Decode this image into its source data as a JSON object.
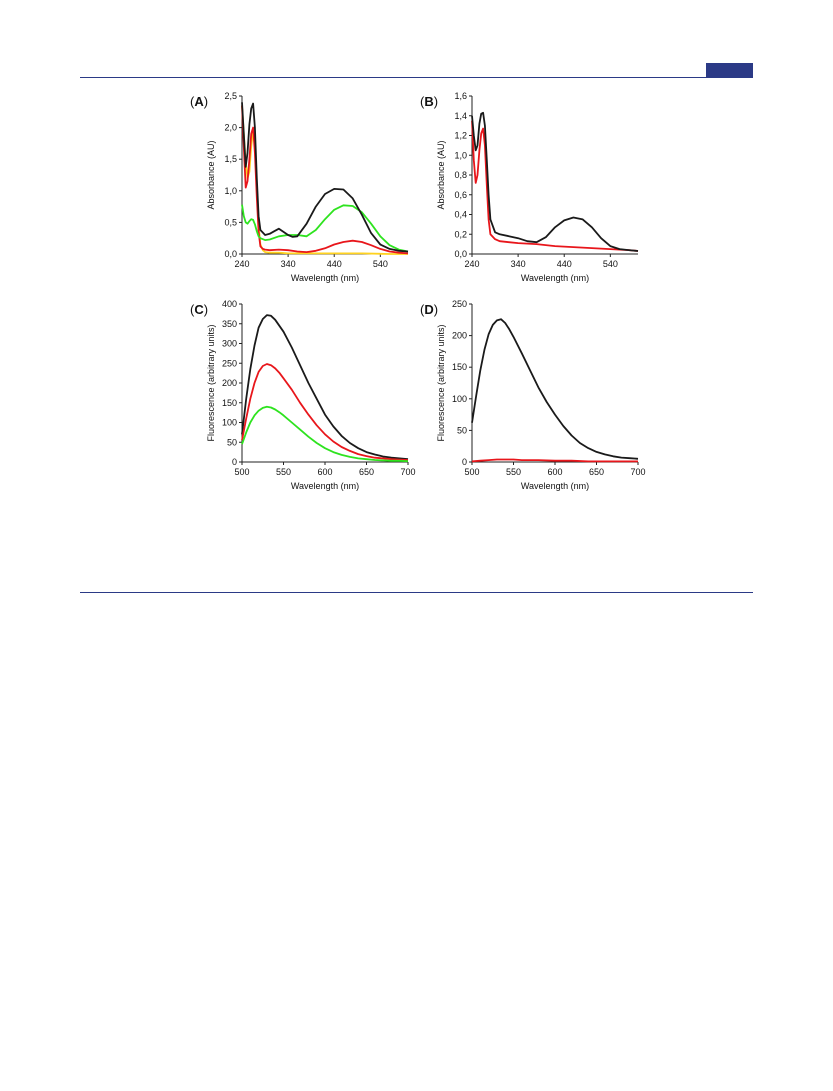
{
  "header": {
    "accent_color": "#2b3a86"
  },
  "chart_data": [
    {
      "id": "A",
      "panel_label": "A",
      "type": "line",
      "xlabel": "Wavelength  (nm)",
      "ylabel": "Absorbance (AU)",
      "xlim": [
        240,
        600
      ],
      "ylim": [
        0,
        2.5
      ],
      "xticks": [
        240,
        340,
        440,
        540
      ],
      "xtick_labels": [
        "240",
        "340",
        "440",
        "540"
      ],
      "yticks": [
        0,
        0.5,
        1.0,
        1.5,
        2.0,
        2.5
      ],
      "ytick_labels": [
        "0,0",
        "0,5",
        "1,0",
        "1,5",
        "2,0",
        "2,5"
      ],
      "grid": false,
      "series": [
        {
          "color": "#ffd21f",
          "x": [
            240,
            244,
            248,
            252,
            256,
            260,
            264,
            268,
            272,
            276,
            280,
            285,
            290,
            300,
            320,
            340,
            380,
            440,
            500,
            560,
            600
          ],
          "y": [
            2.35,
            1.9,
            1.45,
            1.2,
            1.3,
            1.7,
            1.95,
            1.7,
            1.0,
            0.45,
            0.15,
            0.06,
            0.03,
            0.02,
            0.02,
            0.01,
            0.01,
            0.01,
            0.01,
            0.0,
            0.0
          ]
        },
        {
          "color": "#e8161b",
          "x": [
            240,
            244,
            248,
            252,
            256,
            260,
            264,
            268,
            272,
            276,
            280,
            285,
            290,
            300,
            320,
            340,
            360,
            380,
            400,
            420,
            440,
            460,
            480,
            500,
            520,
            540,
            560,
            580,
            600
          ],
          "y": [
            2.35,
            1.7,
            1.05,
            1.15,
            1.5,
            1.9,
            2.0,
            1.6,
            0.9,
            0.35,
            0.12,
            0.08,
            0.07,
            0.06,
            0.07,
            0.06,
            0.04,
            0.03,
            0.05,
            0.09,
            0.15,
            0.19,
            0.21,
            0.19,
            0.14,
            0.08,
            0.04,
            0.02,
            0.01
          ]
        },
        {
          "color": "#2ee31f",
          "x": [
            240,
            244,
            248,
            252,
            256,
            260,
            264,
            268,
            272,
            276,
            280,
            290,
            300,
            320,
            340,
            360,
            380,
            400,
            420,
            440,
            460,
            480,
            500,
            520,
            540,
            560,
            580,
            600
          ],
          "y": [
            0.78,
            0.6,
            0.5,
            0.48,
            0.52,
            0.55,
            0.54,
            0.47,
            0.36,
            0.28,
            0.25,
            0.22,
            0.23,
            0.28,
            0.3,
            0.3,
            0.28,
            0.38,
            0.55,
            0.7,
            0.77,
            0.76,
            0.66,
            0.48,
            0.28,
            0.14,
            0.07,
            0.04
          ]
        },
        {
          "color": "#1a1a1a",
          "x": [
            240,
            244,
            248,
            252,
            256,
            260,
            264,
            268,
            272,
            276,
            280,
            290,
            300,
            310,
            320,
            330,
            340,
            350,
            360,
            380,
            400,
            420,
            440,
            460,
            480,
            500,
            520,
            540,
            560,
            580,
            600
          ],
          "y": [
            2.4,
            1.9,
            1.38,
            1.6,
            2.05,
            2.3,
            2.38,
            2.0,
            1.2,
            0.6,
            0.38,
            0.3,
            0.32,
            0.36,
            0.4,
            0.35,
            0.3,
            0.27,
            0.28,
            0.48,
            0.75,
            0.95,
            1.03,
            1.02,
            0.88,
            0.62,
            0.33,
            0.15,
            0.08,
            0.05,
            0.04
          ]
        }
      ]
    },
    {
      "id": "B",
      "panel_label": "B",
      "type": "line",
      "xlabel": "Wavelength  (nm)",
      "ylabel": "Absorbance (AU)",
      "xlim": [
        240,
        600
      ],
      "ylim": [
        0,
        1.6
      ],
      "xticks": [
        240,
        340,
        440,
        540
      ],
      "xtick_labels": [
        "240",
        "340",
        "440",
        "540"
      ],
      "yticks": [
        0,
        0.2,
        0.4,
        0.6,
        0.8,
        1.0,
        1.2,
        1.4,
        1.6
      ],
      "ytick_labels": [
        "0,0",
        "0,2",
        "0,4",
        "0,6",
        "0,8",
        "1,0",
        "1,2",
        "1,4",
        "1,6"
      ],
      "grid": false,
      "series": [
        {
          "color": "#e8161b",
          "x": [
            240,
            244,
            248,
            252,
            256,
            260,
            264,
            268,
            272,
            276,
            280,
            290,
            300,
            320,
            340,
            380,
            420,
            460,
            500,
            540,
            580,
            600
          ],
          "y": [
            1.35,
            0.95,
            0.72,
            0.8,
            1.05,
            1.22,
            1.27,
            1.1,
            0.7,
            0.35,
            0.2,
            0.15,
            0.13,
            0.12,
            0.11,
            0.1,
            0.08,
            0.07,
            0.06,
            0.05,
            0.04,
            0.03
          ]
        },
        {
          "color": "#1a1a1a",
          "x": [
            240,
            244,
            248,
            252,
            256,
            260,
            264,
            268,
            272,
            276,
            280,
            290,
            300,
            320,
            340,
            360,
            380,
            400,
            420,
            440,
            460,
            480,
            500,
            520,
            540,
            560,
            580,
            600
          ],
          "y": [
            1.4,
            1.2,
            1.05,
            1.1,
            1.32,
            1.42,
            1.43,
            1.3,
            0.95,
            0.6,
            0.35,
            0.22,
            0.2,
            0.18,
            0.16,
            0.13,
            0.12,
            0.17,
            0.27,
            0.34,
            0.37,
            0.35,
            0.27,
            0.16,
            0.08,
            0.05,
            0.04,
            0.03
          ]
        }
      ]
    },
    {
      "id": "C",
      "panel_label": "C",
      "type": "line",
      "xlabel": "Wavelength  (nm)",
      "ylabel": "Fluorescence (arbitrary units)",
      "xlim": [
        500,
        700
      ],
      "ylim": [
        0,
        400
      ],
      "xticks": [
        500,
        550,
        600,
        650,
        700
      ],
      "xtick_labels": [
        "500",
        "550",
        "600",
        "650",
        "700"
      ],
      "yticks": [
        0,
        50,
        100,
        150,
        200,
        250,
        300,
        350,
        400
      ],
      "ytick_labels": [
        "0",
        "50",
        "100",
        "150",
        "200",
        "250",
        "300",
        "350",
        "400"
      ],
      "grid": false,
      "series": [
        {
          "color": "#1a1a1a",
          "x": [
            500,
            505,
            510,
            515,
            520,
            525,
            530,
            535,
            540,
            545,
            550,
            560,
            570,
            580,
            590,
            600,
            610,
            620,
            630,
            640,
            650,
            660,
            670,
            680,
            690,
            700
          ],
          "y": [
            70,
            160,
            235,
            295,
            340,
            362,
            372,
            370,
            360,
            345,
            330,
            290,
            245,
            200,
            160,
            120,
            90,
            66,
            48,
            35,
            25,
            19,
            14,
            11,
            9,
            7
          ]
        },
        {
          "color": "#e8161b",
          "x": [
            500,
            505,
            510,
            515,
            520,
            525,
            530,
            535,
            540,
            545,
            550,
            560,
            570,
            580,
            590,
            600,
            610,
            620,
            630,
            640,
            650,
            660,
            670,
            680,
            690,
            700
          ],
          "y": [
            55,
            110,
            160,
            200,
            228,
            243,
            248,
            245,
            237,
            226,
            212,
            183,
            150,
            120,
            93,
            70,
            52,
            38,
            28,
            20,
            15,
            11,
            9,
            7,
            6,
            5
          ]
        },
        {
          "color": "#2ee31f",
          "x": [
            500,
            505,
            510,
            515,
            520,
            525,
            530,
            535,
            540,
            545,
            550,
            560,
            570,
            580,
            590,
            600,
            610,
            620,
            630,
            640,
            650,
            660,
            670,
            680,
            690,
            700
          ],
          "y": [
            45,
            75,
            100,
            118,
            130,
            137,
            140,
            138,
            133,
            126,
            118,
            100,
            82,
            64,
            48,
            35,
            25,
            18,
            13,
            9,
            7,
            5,
            4,
            3,
            3,
            2
          ]
        }
      ]
    },
    {
      "id": "D",
      "panel_label": "D",
      "type": "line",
      "xlabel": "Wavelength  (nm)",
      "ylabel": "Fluorescence (arbitrary units)",
      "xlim": [
        500,
        700
      ],
      "ylim": [
        0,
        250
      ],
      "xticks": [
        500,
        550,
        600,
        650,
        700
      ],
      "xtick_labels": [
        "500",
        "550",
        "600",
        "650",
        "700"
      ],
      "yticks": [
        0,
        50,
        100,
        150,
        200,
        250
      ],
      "ytick_labels": [
        "0",
        "50",
        "100",
        "150",
        "200",
        "250"
      ],
      "grid": false,
      "series": [
        {
          "color": "#1a1a1a",
          "x": [
            500,
            505,
            510,
            515,
            520,
            525,
            530,
            535,
            540,
            545,
            550,
            560,
            570,
            580,
            590,
            600,
            610,
            620,
            630,
            640,
            650,
            660,
            670,
            680,
            690,
            700
          ],
          "y": [
            62,
            105,
            145,
            178,
            202,
            217,
            224,
            226,
            220,
            210,
            198,
            172,
            145,
            118,
            95,
            75,
            57,
            42,
            30,
            22,
            16,
            12,
            9,
            7,
            6,
            5
          ]
        },
        {
          "color": "#e8161b",
          "x": [
            500,
            510,
            520,
            530,
            540,
            550,
            560,
            580,
            600,
            620,
            640,
            660,
            680,
            700
          ],
          "y": [
            1,
            2,
            3,
            4,
            4,
            4,
            3,
            3,
            2,
            2,
            1,
            1,
            1,
            1
          ]
        }
      ]
    }
  ]
}
